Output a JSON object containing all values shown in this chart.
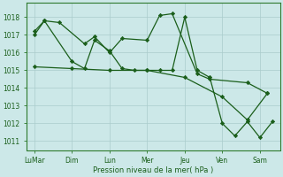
{
  "bg_color": "#cce8e8",
  "grid_color": "#aacccc",
  "line_color": "#1a5e1a",
  "marker_color": "#1a5e1a",
  "ylim": [
    1010.5,
    1018.8
  ],
  "yticks": [
    1011,
    1012,
    1013,
    1014,
    1015,
    1016,
    1017,
    1018
  ],
  "xlabel": "Pression niveau de la mer( hPa )",
  "xtick_labels": [
    "LuMar",
    "Dim",
    "Lun",
    "Mer",
    "Jeu",
    "Ven",
    "Sam"
  ],
  "xtick_positions": [
    0,
    1.5,
    3.0,
    4.5,
    6.0,
    7.5,
    9.0
  ],
  "xlim": [
    -0.3,
    9.8
  ],
  "series1_x": [
    0.0,
    0.4,
    1.0,
    2.0,
    2.4,
    3.0,
    3.5,
    4.5,
    5.0,
    5.5,
    6.5,
    7.0,
    8.5,
    9.3
  ],
  "series1_y": [
    1017.0,
    1017.8,
    1017.7,
    1016.5,
    1016.9,
    1016.0,
    1016.8,
    1016.7,
    1018.1,
    1018.2,
    1014.8,
    1014.5,
    1014.3,
    1013.7
  ],
  "series2_x": [
    0.0,
    0.4,
    1.5,
    2.0,
    2.4,
    3.0,
    3.5,
    4.0,
    4.5,
    5.0,
    5.5,
    6.0,
    6.5,
    7.0,
    7.5,
    8.0,
    8.5,
    9.0,
    9.5
  ],
  "series2_y": [
    1017.2,
    1017.8,
    1015.5,
    1015.1,
    1016.7,
    1016.1,
    1015.1,
    1015.0,
    1015.0,
    1015.0,
    1015.0,
    1018.0,
    1015.0,
    1014.6,
    1012.0,
    1011.3,
    1012.1,
    1011.2,
    1012.1
  ],
  "series3_x": [
    0.0,
    1.5,
    3.0,
    4.5,
    6.0,
    7.5,
    8.5,
    9.3
  ],
  "series3_y": [
    1015.2,
    1015.1,
    1015.0,
    1015.0,
    1014.6,
    1013.5,
    1012.2,
    1013.7
  ],
  "tick_fontsize": 5.5,
  "xlabel_fontsize": 6.0
}
